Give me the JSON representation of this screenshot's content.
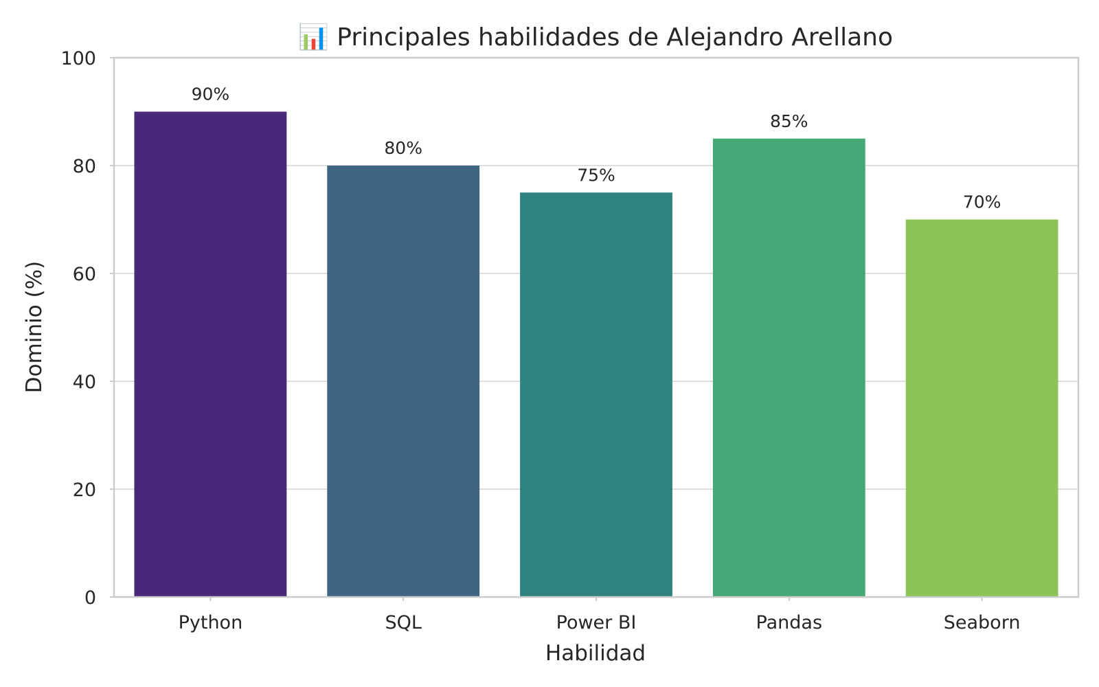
{
  "chart_data": {
    "type": "bar",
    "title": "📊 Principales habilidades de Alejandro Arellano",
    "xlabel": "Habilidad",
    "ylabel": "Dominio (%)",
    "categories": [
      "Python",
      "SQL",
      "Power BI",
      "Pandas",
      "Seaborn"
    ],
    "values": [
      90,
      80,
      75,
      85,
      70
    ],
    "data_labels": [
      "90%",
      "80%",
      "75%",
      "85%",
      "70%"
    ],
    "colors": [
      "#482878",
      "#3e6683",
      "#2f8480",
      "#45a877",
      "#8dc359"
    ],
    "ylim": [
      0,
      100
    ],
    "yticks": [
      0,
      20,
      40,
      60,
      80,
      100
    ],
    "grid": true,
    "frame_color": "#cccccc",
    "grid_color": "#dedede"
  }
}
